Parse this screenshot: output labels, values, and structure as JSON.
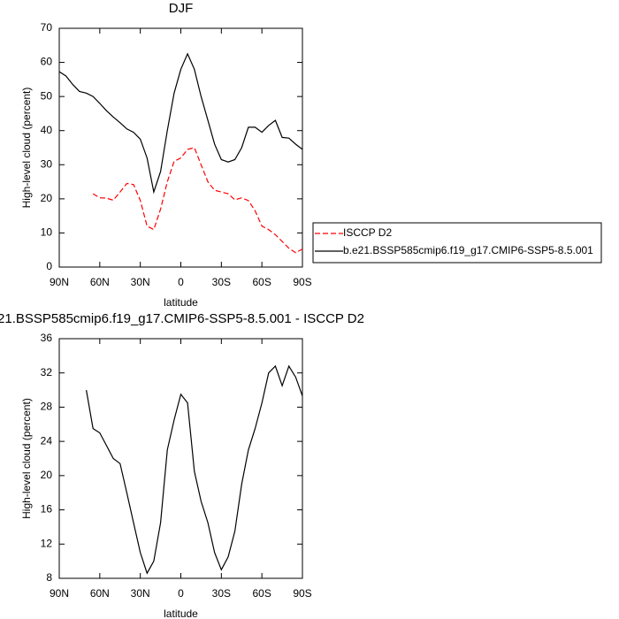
{
  "chart_data": [
    {
      "type": "line",
      "title": "DJF",
      "xlabel": "latitude",
      "ylabel": "High-level cloud (percent)",
      "x": [
        90,
        85,
        80,
        75,
        70,
        65,
        60,
        55,
        50,
        45,
        40,
        35,
        30,
        25,
        20,
        15,
        10,
        5,
        0,
        -5,
        -10,
        -15,
        -20,
        -25,
        -30,
        -35,
        -40,
        -45,
        -50,
        -55,
        -60,
        -65,
        -70,
        -75,
        -80,
        -85,
        -90
      ],
      "series": [
        {
          "name": "ISCCP D2",
          "color": "#ff0000",
          "line_style": "dashed",
          "values": [
            null,
            null,
            null,
            null,
            null,
            21.5,
            20.3,
            20.2,
            19.6,
            22,
            24.5,
            24.2,
            19.5,
            12,
            11,
            17,
            25,
            31,
            32,
            34.5,
            35,
            30,
            25,
            22.5,
            22,
            21.5,
            19.7,
            20.3,
            19.5,
            16.5,
            12,
            11,
            9.5,
            7.5,
            5.5,
            4.2,
            5.3
          ]
        },
        {
          "name": "b.e21.BSSP585cmip6.f19_g17.CMIP6-SSP5-8.5.001",
          "color": "#000000",
          "line_style": "solid",
          "values": [
            57.3,
            56,
            53.5,
            51.5,
            51,
            50,
            48,
            45.8,
            44,
            42.3,
            40.5,
            39.5,
            37.5,
            32,
            22,
            28,
            40,
            51,
            58,
            62.5,
            58,
            50,
            43,
            36,
            31.5,
            30.8,
            31.5,
            35,
            41,
            41,
            39.5,
            41.5,
            43,
            38,
            37.8,
            36,
            34.5
          ]
        }
      ],
      "xlim": [
        90,
        -90
      ],
      "xticks": [
        {
          "value": 90,
          "label": "90N"
        },
        {
          "value": 60,
          "label": "60N"
        },
        {
          "value": 30,
          "label": "30N"
        },
        0,
        {
          "value": -30,
          "label": "30S"
        },
        {
          "value": -60,
          "label": "60S"
        },
        {
          "value": -90,
          "label": "90S"
        }
      ],
      "ylim": [
        0,
        70
      ],
      "yticks": [
        0,
        10,
        20,
        30,
        40,
        50,
        60,
        70
      ],
      "legend": "right"
    },
    {
      "type": "line",
      "title": "21.BSSP585cmip6.f19_g17.CMIP6-SSP5-8.5.001 - ISCCP D2",
      "xlabel": "latitude",
      "ylabel": "High-level cloud (percent)",
      "x": [
        90,
        85,
        80,
        75,
        70,
        65,
        60,
        55,
        50,
        45,
        40,
        35,
        30,
        25,
        20,
        15,
        10,
        5,
        0,
        -5,
        -10,
        -15,
        -20,
        -25,
        -30,
        -35,
        -40,
        -45,
        -50,
        -55,
        -60,
        -65,
        -70,
        -75,
        -80,
        -85,
        -90
      ],
      "series": [
        {
          "color": "#000000",
          "line_style": "solid",
          "values": [
            null,
            null,
            null,
            null,
            30,
            25.5,
            25,
            23.5,
            22,
            21.4,
            18,
            14.5,
            11,
            8.6,
            10,
            14.5,
            23,
            26.5,
            29.5,
            28.5,
            20.5,
            17,
            14.5,
            11,
            9,
            10.5,
            13.5,
            19,
            23,
            25.5,
            28.5,
            32,
            32.8,
            30.5,
            32.8,
            31.5,
            29.3
          ]
        }
      ],
      "xlim": [
        90,
        -90
      ],
      "xticks": [
        {
          "value": 90,
          "label": "90N"
        },
        {
          "value": 60,
          "label": "60N"
        },
        {
          "value": 30,
          "label": "30N"
        },
        0,
        {
          "value": -30,
          "label": "30S"
        },
        {
          "value": -60,
          "label": "60S"
        },
        {
          "value": -90,
          "label": "90S"
        }
      ],
      "ylim": [
        8,
        36
      ],
      "yticks": [
        8,
        12,
        16,
        20,
        24,
        28,
        32,
        36
      ]
    }
  ]
}
